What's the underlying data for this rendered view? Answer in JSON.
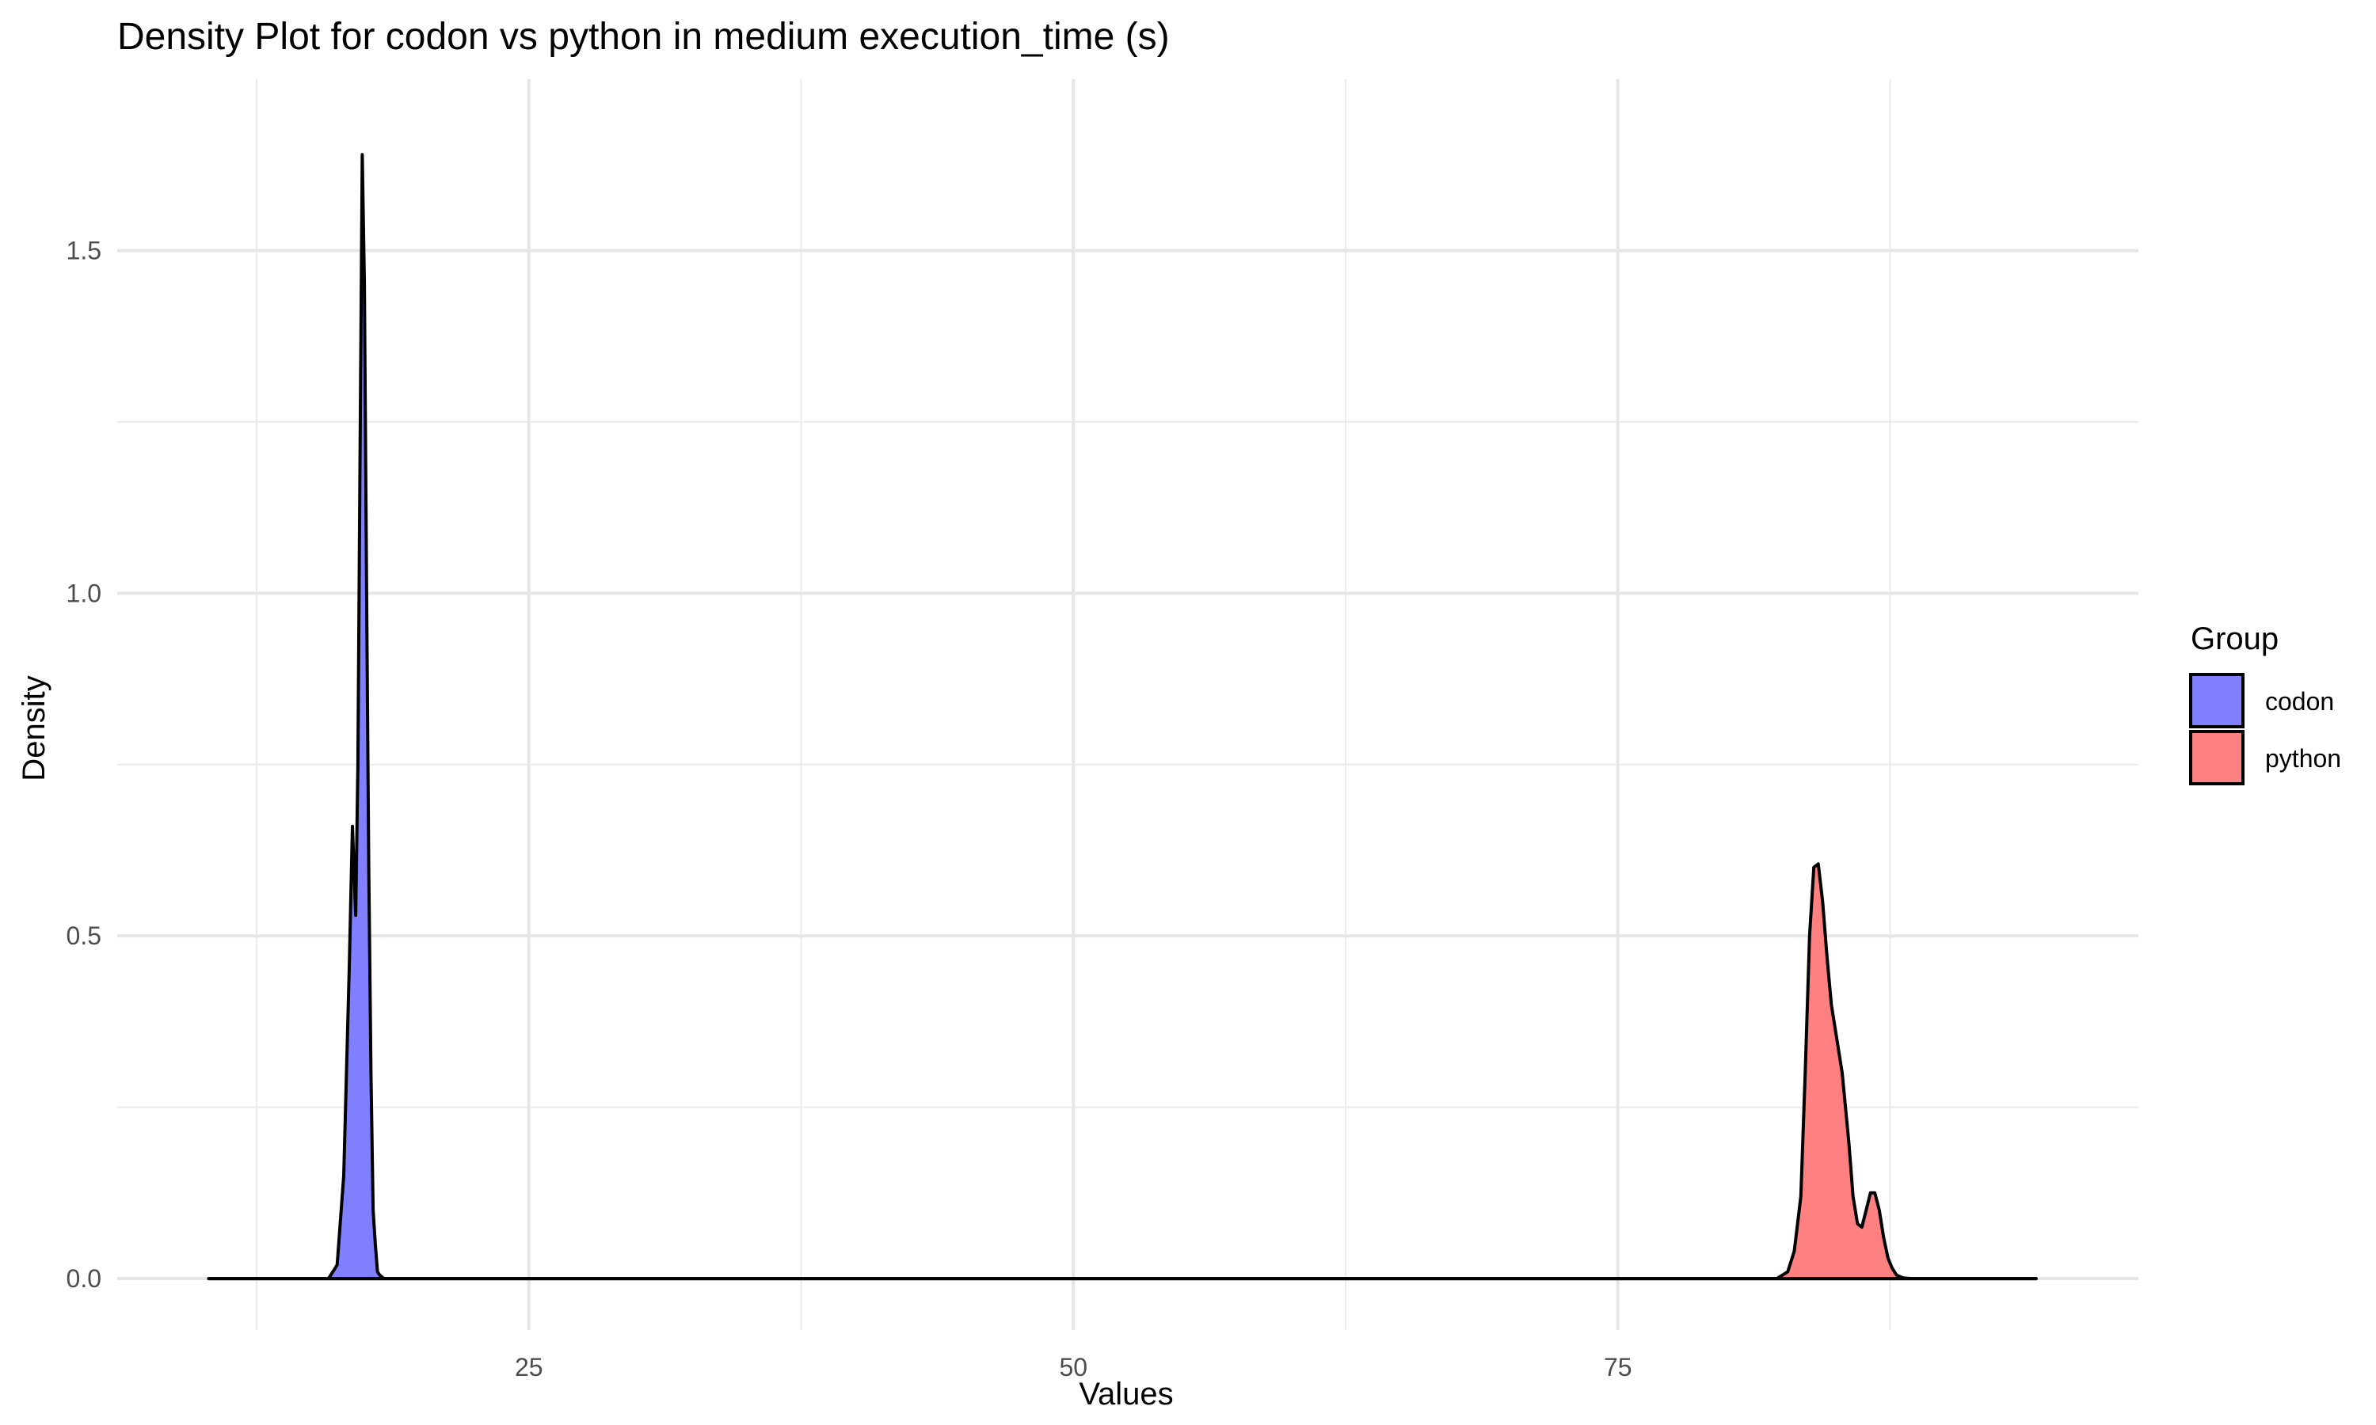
{
  "chart_data": {
    "type": "area",
    "title": "Density Plot for codon vs python in medium execution_time (s)",
    "xlabel": "Values",
    "ylabel": "Density",
    "xlim": [
      6.1,
      98.9
    ],
    "ylim": [
      -0.075,
      1.75
    ],
    "x_ticks": [
      25,
      50,
      75
    ],
    "x_tick_labels": [
      "25",
      "50",
      "75"
    ],
    "x_minor_ticks": [
      12.5,
      37.5,
      62.5,
      87.5
    ],
    "y_ticks": [
      0.0,
      0.5,
      1.0,
      1.5
    ],
    "y_tick_labels": [
      "0.0",
      "0.5",
      "1.0",
      "1.5"
    ],
    "y_minor_ticks": [
      0.25,
      0.75,
      1.25
    ],
    "grid": true,
    "legend": {
      "title": "Group",
      "position": "right"
    },
    "series": [
      {
        "name": "codon",
        "color": "#8080FF",
        "x": [
          10.3,
          15.8,
          16.2,
          16.5,
          16.75,
          16.9,
          17.05,
          17.15,
          17.25,
          17.35,
          17.45,
          17.55,
          17.65,
          17.75,
          17.85,
          17.95,
          18.05,
          18.15,
          18.35,
          19.0,
          94.2
        ],
        "y": [
          0,
          0,
          0.02,
          0.15,
          0.45,
          0.66,
          0.53,
          0.75,
          1.2,
          1.64,
          1.45,
          1.0,
          0.6,
          0.3,
          0.1,
          0.05,
          0.01,
          0.005,
          0,
          0,
          0
        ]
      },
      {
        "name": "python",
        "color": "#FF8080",
        "x": [
          10.3,
          82.3,
          82.8,
          83.1,
          83.4,
          83.6,
          83.8,
          84.0,
          84.2,
          84.4,
          84.6,
          84.8,
          85.0,
          85.3,
          85.6,
          85.8,
          86.0,
          86.2,
          86.4,
          86.6,
          86.8,
          87.0,
          87.2,
          87.4,
          87.6,
          87.8,
          88.1,
          88.5,
          94.2
        ],
        "y": [
          0,
          0,
          0.01,
          0.04,
          0.12,
          0.3,
          0.5,
          0.6,
          0.605,
          0.55,
          0.47,
          0.4,
          0.36,
          0.3,
          0.2,
          0.12,
          0.08,
          0.075,
          0.1,
          0.125,
          0.125,
          0.1,
          0.06,
          0.03,
          0.015,
          0.005,
          0.001,
          0,
          0
        ]
      }
    ]
  }
}
